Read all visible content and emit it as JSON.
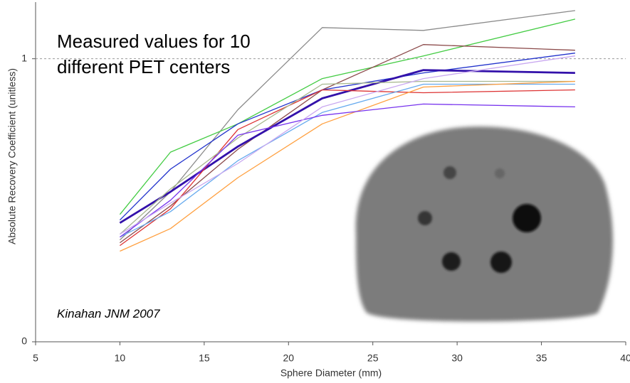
{
  "chart_data": {
    "type": "line",
    "annotation": "Measured values for 10 different PET centers",
    "citation": "Kinahan JNM 2007",
    "xlabel": "Sphere Diameter (mm)",
    "ylabel": "Absolute Recovery Coefficient (unitless)",
    "xlim": [
      5,
      40
    ],
    "xticks": [
      5,
      10,
      15,
      20,
      25,
      30,
      35,
      40
    ],
    "ylim": [
      0,
      1.2
    ],
    "yticks": [
      0,
      1
    ],
    "x": [
      10,
      13,
      17,
      22,
      28,
      37
    ],
    "series": [
      {
        "color": "#8a8a8a",
        "values": [
          0.36,
          0.53,
          0.82,
          1.11,
          1.1,
          1.17
        ]
      },
      {
        "color": "#44cc44",
        "values": [
          0.45,
          0.67,
          0.77,
          0.93,
          1.01,
          1.14
        ]
      },
      {
        "color": "#8b4a4a",
        "values": [
          0.35,
          0.48,
          0.68,
          0.89,
          1.05,
          1.03
        ]
      },
      {
        "color": "#2233cc",
        "values": [
          0.43,
          0.61,
          0.77,
          0.89,
          0.95,
          1.02
        ]
      },
      {
        "color": "#3311aa",
        "values": [
          0.42,
          0.53,
          0.69,
          0.86,
          0.96,
          0.95
        ]
      },
      {
        "color": "#dd3333",
        "values": [
          0.34,
          0.47,
          0.75,
          0.89,
          0.88,
          0.89
        ]
      },
      {
        "color": "#a8b890",
        "values": [
          0.38,
          0.54,
          0.72,
          0.91,
          0.92,
          0.92
        ]
      },
      {
        "color": "#66aaee",
        "values": [
          0.37,
          0.46,
          0.64,
          0.81,
          0.91,
          0.91
        ]
      },
      {
        "color": "#ffa040",
        "values": [
          0.32,
          0.4,
          0.58,
          0.77,
          0.9,
          0.92
        ]
      },
      {
        "color": "#7733ee",
        "values": [
          0.37,
          0.5,
          0.73,
          0.8,
          0.84,
          0.83
        ]
      },
      {
        "color": "#c9a8f0",
        "values": [
          0.38,
          0.49,
          0.63,
          0.83,
          0.93,
          1.01
        ]
      }
    ],
    "series_width": [
      1.3,
      1.3,
      1.3,
      1.3,
      2.8,
      1.3,
      1.3,
      1.3,
      1.3,
      1.3,
      1.3
    ],
    "grid": true
  }
}
